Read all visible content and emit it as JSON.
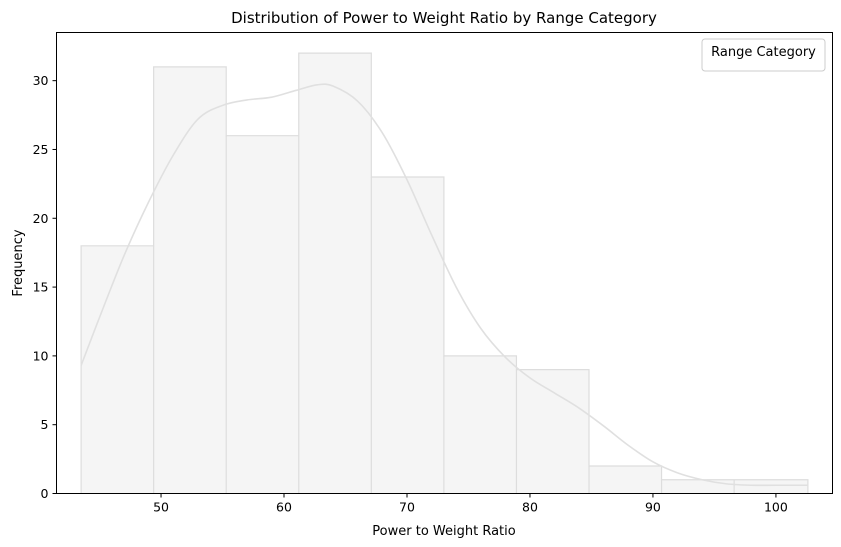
{
  "chart_data": {
    "type": "bar",
    "title": "Distribution of Power to Weight Ratio by Range Category",
    "xlabel": "Power to Weight Ratio",
    "ylabel": "Frequency",
    "xlim": [
      41.5,
      104.6
    ],
    "ylim": [
      0,
      33.5
    ],
    "xticks": [
      50,
      60,
      70,
      80,
      90,
      100
    ],
    "yticks": [
      0,
      5,
      10,
      15,
      20,
      25,
      30
    ],
    "bin_edges": [
      43.5,
      49.4,
      55.3,
      61.2,
      67.1,
      73.0,
      78.9,
      84.8,
      90.7,
      96.6,
      102.6
    ],
    "values": [
      18,
      31,
      26,
      32,
      23,
      10,
      9,
      2,
      1,
      1
    ],
    "kde": {
      "x": [
        43.5,
        45,
        47,
        49,
        51,
        53,
        55,
        57,
        59,
        61,
        62.7,
        64,
        66,
        68,
        70,
        72,
        74,
        76,
        78,
        80,
        82,
        84,
        86,
        88,
        90,
        92,
        94,
        96,
        98,
        100,
        102.6
      ],
      "y": [
        9.3,
        12.8,
        17.3,
        21.2,
        24.6,
        27.2,
        28.2,
        28.6,
        28.8,
        29.3,
        29.7,
        29.6,
        28.5,
        26.2,
        22.8,
        18.8,
        15.0,
        12.0,
        9.9,
        8.4,
        7.3,
        6.2,
        4.9,
        3.5,
        2.3,
        1.5,
        1.0,
        0.7,
        0.6,
        0.6,
        0.6
      ]
    },
    "legend": {
      "title": "Range Category",
      "position": "top-right",
      "entries": []
    },
    "colors": {
      "fill": "#f5f5f5",
      "edge": "#dddddd",
      "kde": "#e0e0e0"
    },
    "grid": false
  }
}
